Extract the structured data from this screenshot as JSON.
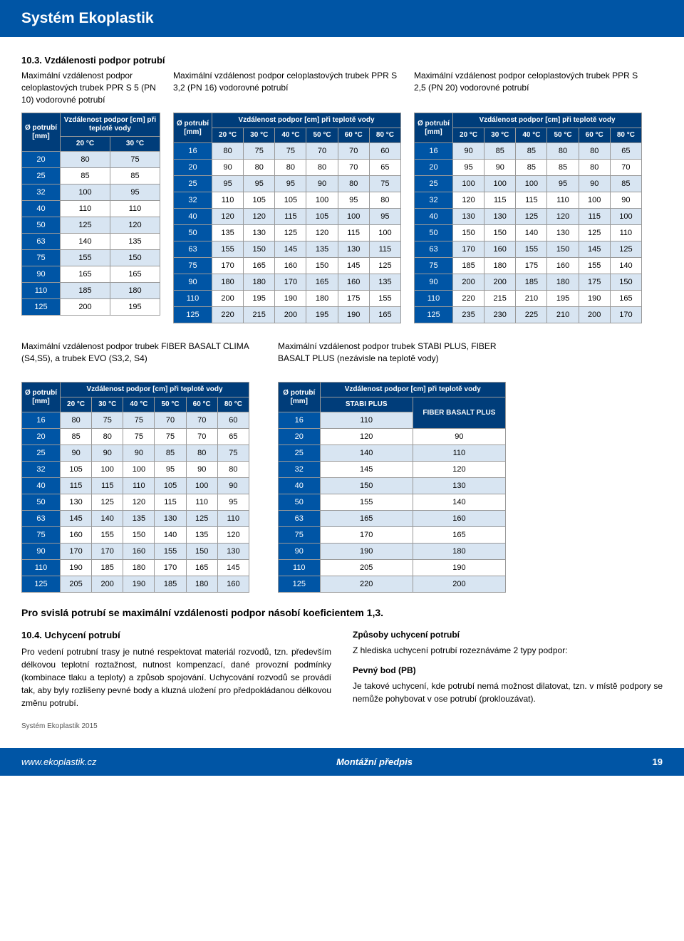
{
  "header": {
    "title": "Systém Ekoplastik"
  },
  "section": {
    "num": "10.3. Vzdálenosti podpor potrubí"
  },
  "t1": {
    "title": "Maximální vzdálenost podpor celoplastových trubek PPR S 5 (PN 10) vodorovné potrubí",
    "h0": "Ø potrubí [mm]",
    "h1": "Vzdálenost podpor [cm] při teplotě vody",
    "cols": [
      "20 °C",
      "30 °C"
    ],
    "rows": [
      [
        "20",
        "80",
        "75"
      ],
      [
        "25",
        "85",
        "85"
      ],
      [
        "32",
        "100",
        "95"
      ],
      [
        "40",
        "110",
        "110"
      ],
      [
        "50",
        "125",
        "120"
      ],
      [
        "63",
        "140",
        "135"
      ],
      [
        "75",
        "155",
        "150"
      ],
      [
        "90",
        "165",
        "165"
      ],
      [
        "110",
        "185",
        "180"
      ],
      [
        "125",
        "200",
        "195"
      ]
    ]
  },
  "t2": {
    "title": "Maximální vzdálenost podpor celoplastových trubek PPR S 3,2 (PN 16) vodorovné potrubí",
    "h0": "Ø potrubí [mm]",
    "h1": "Vzdálenost podpor [cm] při teplotě vody",
    "cols": [
      "20 °C",
      "30 °C",
      "40 °C",
      "50 °C",
      "60 °C",
      "80 °C"
    ],
    "rows": [
      [
        "16",
        "80",
        "75",
        "75",
        "70",
        "70",
        "60"
      ],
      [
        "20",
        "90",
        "80",
        "80",
        "80",
        "70",
        "65"
      ],
      [
        "25",
        "95",
        "95",
        "95",
        "90",
        "80",
        "75"
      ],
      [
        "32",
        "110",
        "105",
        "105",
        "100",
        "95",
        "80"
      ],
      [
        "40",
        "120",
        "120",
        "115",
        "105",
        "100",
        "95"
      ],
      [
        "50",
        "135",
        "130",
        "125",
        "120",
        "115",
        "100"
      ],
      [
        "63",
        "155",
        "150",
        "145",
        "135",
        "130",
        "115"
      ],
      [
        "75",
        "170",
        "165",
        "160",
        "150",
        "145",
        "125"
      ],
      [
        "90",
        "180",
        "180",
        "170",
        "165",
        "160",
        "135"
      ],
      [
        "110",
        "200",
        "195",
        "190",
        "180",
        "175",
        "155"
      ],
      [
        "125",
        "220",
        "215",
        "200",
        "195",
        "190",
        "165"
      ]
    ]
  },
  "t3": {
    "title": "Maximální vzdálenost podpor celoplastových trubek PPR S 2,5 (PN 20) vodorovné potrubí",
    "h0": "Ø potrubí [mm]",
    "h1": "Vzdálenost podpor [cm] při teplotě vody",
    "cols": [
      "20 °C",
      "30 °C",
      "40 °C",
      "50 °C",
      "60 °C",
      "80 °C"
    ],
    "rows": [
      [
        "16",
        "90",
        "85",
        "85",
        "80",
        "80",
        "65"
      ],
      [
        "20",
        "95",
        "90",
        "85",
        "85",
        "80",
        "70"
      ],
      [
        "25",
        "100",
        "100",
        "100",
        "95",
        "90",
        "85"
      ],
      [
        "32",
        "120",
        "115",
        "115",
        "110",
        "100",
        "90"
      ],
      [
        "40",
        "130",
        "130",
        "125",
        "120",
        "115",
        "100"
      ],
      [
        "50",
        "150",
        "150",
        "140",
        "130",
        "125",
        "110"
      ],
      [
        "63",
        "170",
        "160",
        "155",
        "150",
        "145",
        "125"
      ],
      [
        "75",
        "185",
        "180",
        "175",
        "160",
        "155",
        "140"
      ],
      [
        "90",
        "200",
        "200",
        "185",
        "180",
        "175",
        "150"
      ],
      [
        "110",
        "220",
        "215",
        "210",
        "195",
        "190",
        "165"
      ],
      [
        "125",
        "235",
        "230",
        "225",
        "210",
        "200",
        "170"
      ]
    ]
  },
  "t4": {
    "title": "Maximální vzdálenost podpor trubek FIBER BASALT CLIMA (S4,S5), a trubek EVO (S3,2, S4)",
    "h0": "Ø potrubí [mm]",
    "h1": "Vzdálenost podpor [cm] při teplotě vody",
    "cols": [
      "20 °C",
      "30 °C",
      "40 °C",
      "50 °C",
      "60 °C",
      "80 °C"
    ],
    "rows": [
      [
        "16",
        "80",
        "75",
        "75",
        "70",
        "70",
        "60"
      ],
      [
        "20",
        "85",
        "80",
        "75",
        "75",
        "70",
        "65"
      ],
      [
        "25",
        "90",
        "90",
        "90",
        "85",
        "80",
        "75"
      ],
      [
        "32",
        "105",
        "100",
        "100",
        "95",
        "90",
        "80"
      ],
      [
        "40",
        "115",
        "115",
        "110",
        "105",
        "100",
        "90"
      ],
      [
        "50",
        "130",
        "125",
        "120",
        "115",
        "110",
        "95"
      ],
      [
        "63",
        "145",
        "140",
        "135",
        "130",
        "125",
        "110"
      ],
      [
        "75",
        "160",
        "155",
        "150",
        "140",
        "135",
        "120"
      ],
      [
        "90",
        "170",
        "170",
        "160",
        "155",
        "150",
        "130"
      ],
      [
        "110",
        "190",
        "185",
        "180",
        "170",
        "165",
        "145"
      ],
      [
        "125",
        "205",
        "200",
        "190",
        "185",
        "180",
        "160"
      ]
    ]
  },
  "t5": {
    "title": "Maximální vzdálenost podpor trubek STABI PLUS, FIBER BASALT PLUS (nezávisle na teplotě vody)",
    "h0": "Ø potrubí [mm]",
    "h1": "Vzdálenost podpor [cm] při teplotě vody",
    "cols": [
      "STABI PLUS",
      "FIBER BASALT PLUS"
    ],
    "rows": [
      [
        "16",
        "110",
        ""
      ],
      [
        "20",
        "120",
        "90"
      ],
      [
        "25",
        "140",
        "110"
      ],
      [
        "32",
        "145",
        "120"
      ],
      [
        "40",
        "150",
        "130"
      ],
      [
        "50",
        "155",
        "140"
      ],
      [
        "63",
        "165",
        "160"
      ],
      [
        "75",
        "170",
        "165"
      ],
      [
        "90",
        "190",
        "180"
      ],
      [
        "110",
        "205",
        "190"
      ],
      [
        "125",
        "220",
        "200"
      ]
    ]
  },
  "note": "Pro svislá potrubí se maximální vzdálenosti podpor násobí koeficientem 1,3.",
  "text": {
    "left_title": "10.4. Uchycení potrubí",
    "left_body": "Pro vedení potrubní trasy je nutné respektovat materiál rozvodů, tzn. především délkovou teplotní roztažnost, nutnost kompenzací, dané provozní podmínky (kombinace tlaku a teploty) a způsob spojování. Uchycování rozvodů se provádí tak, aby byly rozlišeny pevné body a kluzná uložení pro předpokládanou délkovou změnu potrubí.",
    "right_title1": "Způsoby uchycení potrubí",
    "right_body1": "Z hlediska uchycení potrubí rozeznáváme 2 typy podpor:",
    "right_title2": "Pevný bod (PB)",
    "right_body2": "Je takové uchycení, kde potrubí nemá možnost dilatovat, tzn. v místě podpory se nemůže pohybovat v ose potrubí (proklouzávat)."
  },
  "footer": {
    "meta": "Systém Ekoplastik 2015",
    "left": "www.ekoplastik.cz",
    "mid": "Montážní předpis",
    "page": "19"
  }
}
